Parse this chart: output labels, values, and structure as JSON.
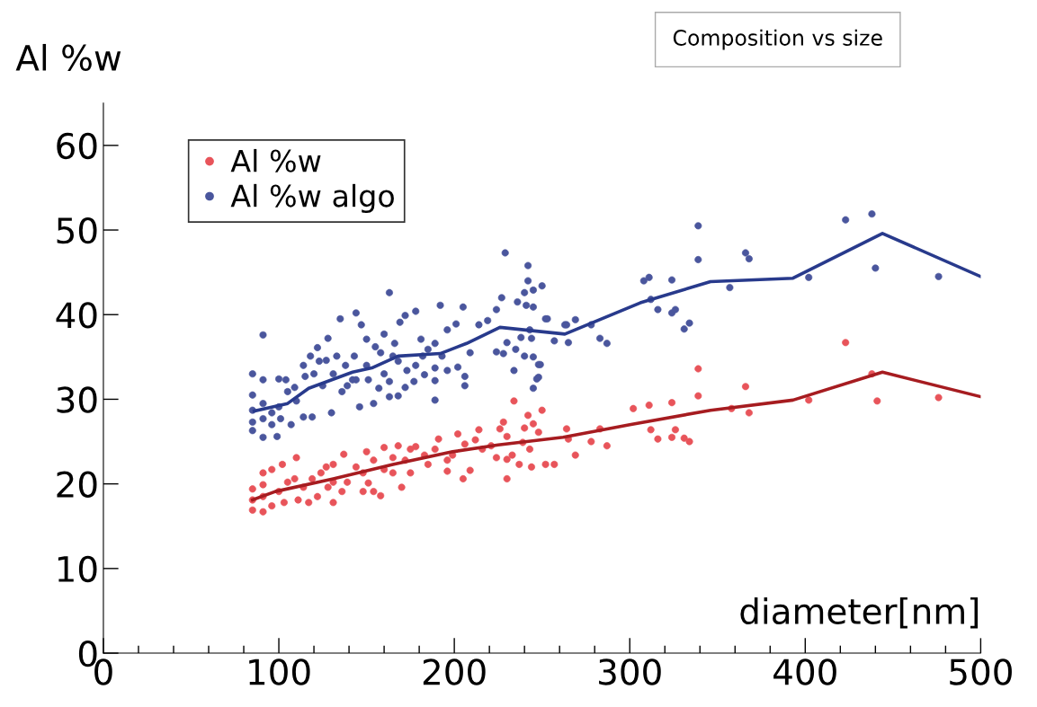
{
  "chart_data": {
    "type": "scatter",
    "title": "Composition vs size",
    "xlabel": "diameter[nm]",
    "ylabel": "Al %w",
    "xlim": [
      0,
      500
    ],
    "xticks": [
      0,
      {
        "value": 20,
        "label": null
      },
      {
        "value": 40,
        "label": null
      },
      {
        "value": 60,
        "label": null
      },
      {
        "value": 80,
        "label": null
      },
      100,
      {
        "value": 120,
        "label": null
      },
      {
        "value": 140,
        "label": null
      },
      {
        "value": 160,
        "label": null
      },
      {
        "value": 180,
        "label": null
      },
      200,
      {
        "value": 220,
        "label": null
      },
      {
        "value": 240,
        "label": null
      },
      {
        "value": 260,
        "label": null
      },
      {
        "value": 280,
        "label": null
      },
      300,
      {
        "value": 320,
        "label": null
      },
      {
        "value": 340,
        "label": null
      },
      {
        "value": 360,
        "label": null
      },
      {
        "value": 380,
        "label": null
      },
      400,
      {
        "value": 420,
        "label": null
      },
      {
        "value": 440,
        "label": null
      },
      {
        "value": 460,
        "label": null
      },
      {
        "value": 480,
        "label": null
      },
      500
    ],
    "ylim": [
      0,
      65
    ],
    "yticks": [
      0,
      10,
      20,
      30,
      40,
      50,
      60
    ],
    "grid": false,
    "legend": "top left",
    "series": [
      {
        "name": "Al %w",
        "marker": "circle",
        "color": "#e8545a",
        "x": [
          339,
          339,
          302,
          311,
          324,
          312,
          316,
          324,
          326,
          331,
          334,
          366,
          368,
          358,
          402,
          423,
          438,
          441,
          476,
          250,
          264,
          265,
          278,
          283,
          287,
          269,
          234,
          242,
          245,
          240,
          248,
          228,
          226,
          230,
          214,
          202,
          212,
          191,
          178,
          168,
          160,
          137,
          110,
          102,
          252,
          257,
          244,
          237,
          230,
          230,
          205,
          209,
          196,
          196,
          185,
          175,
          170,
          158,
          151,
          148,
          139,
          136,
          131,
          124,
          122,
          117,
          111,
          105,
          103,
          100,
          96,
          96,
          91,
          91,
          91,
          91,
          85,
          85,
          85,
          109,
          114,
          119,
          127,
          131,
          144,
          150,
          154,
          160,
          165,
          165,
          172,
          175,
          183,
          189,
          199,
          206,
          216,
          221,
          224,
          233,
          239,
          243,
          154,
          148,
          128,
          131
        ],
        "values": [
          33.6,
          30.4,
          28.9,
          29.3,
          29.6,
          26.4,
          25.3,
          25.5,
          26.4,
          25.4,
          25.0,
          31.5,
          28.4,
          28.9,
          29.9,
          36.7,
          33.0,
          29.8,
          30.2,
          28.7,
          26.5,
          25.3,
          25.0,
          26.5,
          24.5,
          23.4,
          29.8,
          28.1,
          27.1,
          26.6,
          26.1,
          27.3,
          26.5,
          25.6,
          26.4,
          25.9,
          25.2,
          25.3,
          24.4,
          24.5,
          24.3,
          23.5,
          23.1,
          22.3,
          22.3,
          22.3,
          22.0,
          22.3,
          22.9,
          20.6,
          20.6,
          21.6,
          21.5,
          22.8,
          22.3,
          21.3,
          19.6,
          18.6,
          20.1,
          21.3,
          20.2,
          19.1,
          20.2,
          21.3,
          18.5,
          17.8,
          18.1,
          20.2,
          17.8,
          19.1,
          21.7,
          17.4,
          21.3,
          19.9,
          18.5,
          16.7,
          19.4,
          18.1,
          16.9,
          20.6,
          19.6,
          20.6,
          22.0,
          22.3,
          22.0,
          23.8,
          22.8,
          21.7,
          21.3,
          23.1,
          22.8,
          24.1,
          23.4,
          24.1,
          23.4,
          24.7,
          24.1,
          24.5,
          23.1,
          23.4,
          24.9,
          24.1,
          19.1,
          19.1,
          19.6,
          17.8
        ]
      },
      {
        "name": "Al %w algo",
        "marker": "circle",
        "color": "#4a569d",
        "x": [
          339,
          339,
          308,
          311,
          324,
          312,
          316,
          324,
          326,
          334,
          331,
          366,
          368,
          357,
          402,
          423,
          438,
          440,
          476,
          250,
          252,
          264,
          269,
          278,
          257,
          265,
          283,
          287,
          249,
          248,
          91,
          229,
          242,
          242,
          240,
          245,
          163,
          144,
          135,
          147,
          178,
          192,
          205,
          169,
          172,
          128,
          150,
          160,
          181,
          196,
          201,
          214,
          219,
          224,
          227,
          236,
          241,
          245,
          253,
          263,
          238,
          244,
          243,
          230,
          224,
          235,
          240,
          245,
          248,
          247,
          245,
          234,
          228,
          209,
          206,
          206,
          202,
          196,
          189,
          189,
          189,
          183,
          177,
          172,
          168,
          163,
          163,
          157,
          154,
          146,
          142,
          136,
          130,
          119,
          114,
          107,
          99,
          91,
          85,
          85,
          85,
          85,
          85,
          91,
          91,
          91,
          96,
          96,
          100,
          101,
          100,
          104,
          105,
          109,
          110,
          114,
          115,
          118,
          122,
          123,
          120,
          125,
          127,
          131,
          133,
          138,
          143,
          139,
          144,
          150,
          151,
          155,
          158,
          160,
          165,
          166,
          168,
          173,
          178,
          182,
          185,
          193,
          189
        ],
        "values": [
          50.5,
          46.5,
          44.0,
          44.4,
          44.1,
          41.8,
          40.6,
          40.2,
          40.6,
          39.0,
          38.3,
          47.3,
          46.6,
          43.2,
          44.4,
          51.2,
          51.9,
          45.5,
          44.5,
          43.4,
          39.5,
          38.8,
          39.4,
          38.8,
          36.9,
          36.7,
          37.2,
          36.6,
          34.1,
          32.6,
          37.6,
          47.3,
          45.8,
          44.0,
          42.6,
          42.9,
          42.6,
          40.2,
          39.5,
          38.8,
          40.4,
          41.1,
          40.9,
          39.1,
          39.9,
          37.2,
          37.1,
          37.7,
          37.1,
          38.2,
          38.9,
          38.8,
          39.3,
          40.6,
          42.0,
          41.5,
          41.1,
          40.9,
          39.5,
          38.8,
          37.3,
          37.2,
          38.2,
          36.7,
          35.6,
          35.9,
          35.1,
          35.0,
          34.1,
          32.4,
          31.3,
          33.4,
          35.4,
          35.5,
          32.7,
          31.6,
          33.8,
          33.4,
          33.7,
          32.2,
          29.9,
          32.9,
          32.1,
          31.4,
          30.4,
          30.3,
          32.1,
          31.3,
          29.5,
          29.1,
          32.3,
          30.9,
          28.4,
          27.9,
          27.9,
          27.0,
          25.6,
          32.3,
          33.0,
          30.5,
          28.7,
          27.3,
          26.3,
          29.5,
          27.7,
          25.5,
          28.4,
          27.0,
          29.1,
          27.7,
          32.4,
          32.3,
          30.9,
          31.4,
          29.8,
          34.0,
          32.7,
          35.1,
          36.1,
          34.5,
          33.0,
          31.6,
          34.6,
          33.0,
          35.1,
          34.0,
          35.1,
          31.6,
          32.3,
          34.0,
          32.3,
          36.2,
          35.5,
          33.0,
          35.1,
          36.6,
          34.5,
          33.4,
          34.0,
          35.1,
          35.9,
          35.1,
          36.6
        ]
      },
      {
        "type": "line",
        "color": "#a61c20",
        "x": [
          85,
          98,
          131,
          165,
          199,
          225,
          262,
          300,
          346,
          393,
          444,
          500
        ],
        "values": [
          18.1,
          19.1,
          20.6,
          22.3,
          23.8,
          24.6,
          25.5,
          27.0,
          28.7,
          29.9,
          33.2,
          30.3
        ]
      },
      {
        "type": "line",
        "color": "#283a8c",
        "x": [
          86,
          105,
          117,
          142,
          153,
          168,
          192,
          207,
          226,
          263,
          306,
          346,
          393,
          444,
          500
        ],
        "values": [
          28.6,
          29.5,
          31.3,
          33.2,
          33.7,
          35.1,
          35.4,
          36.6,
          38.5,
          37.7,
          41.4,
          43.9,
          44.3,
          49.6,
          44.5
        ]
      }
    ]
  }
}
